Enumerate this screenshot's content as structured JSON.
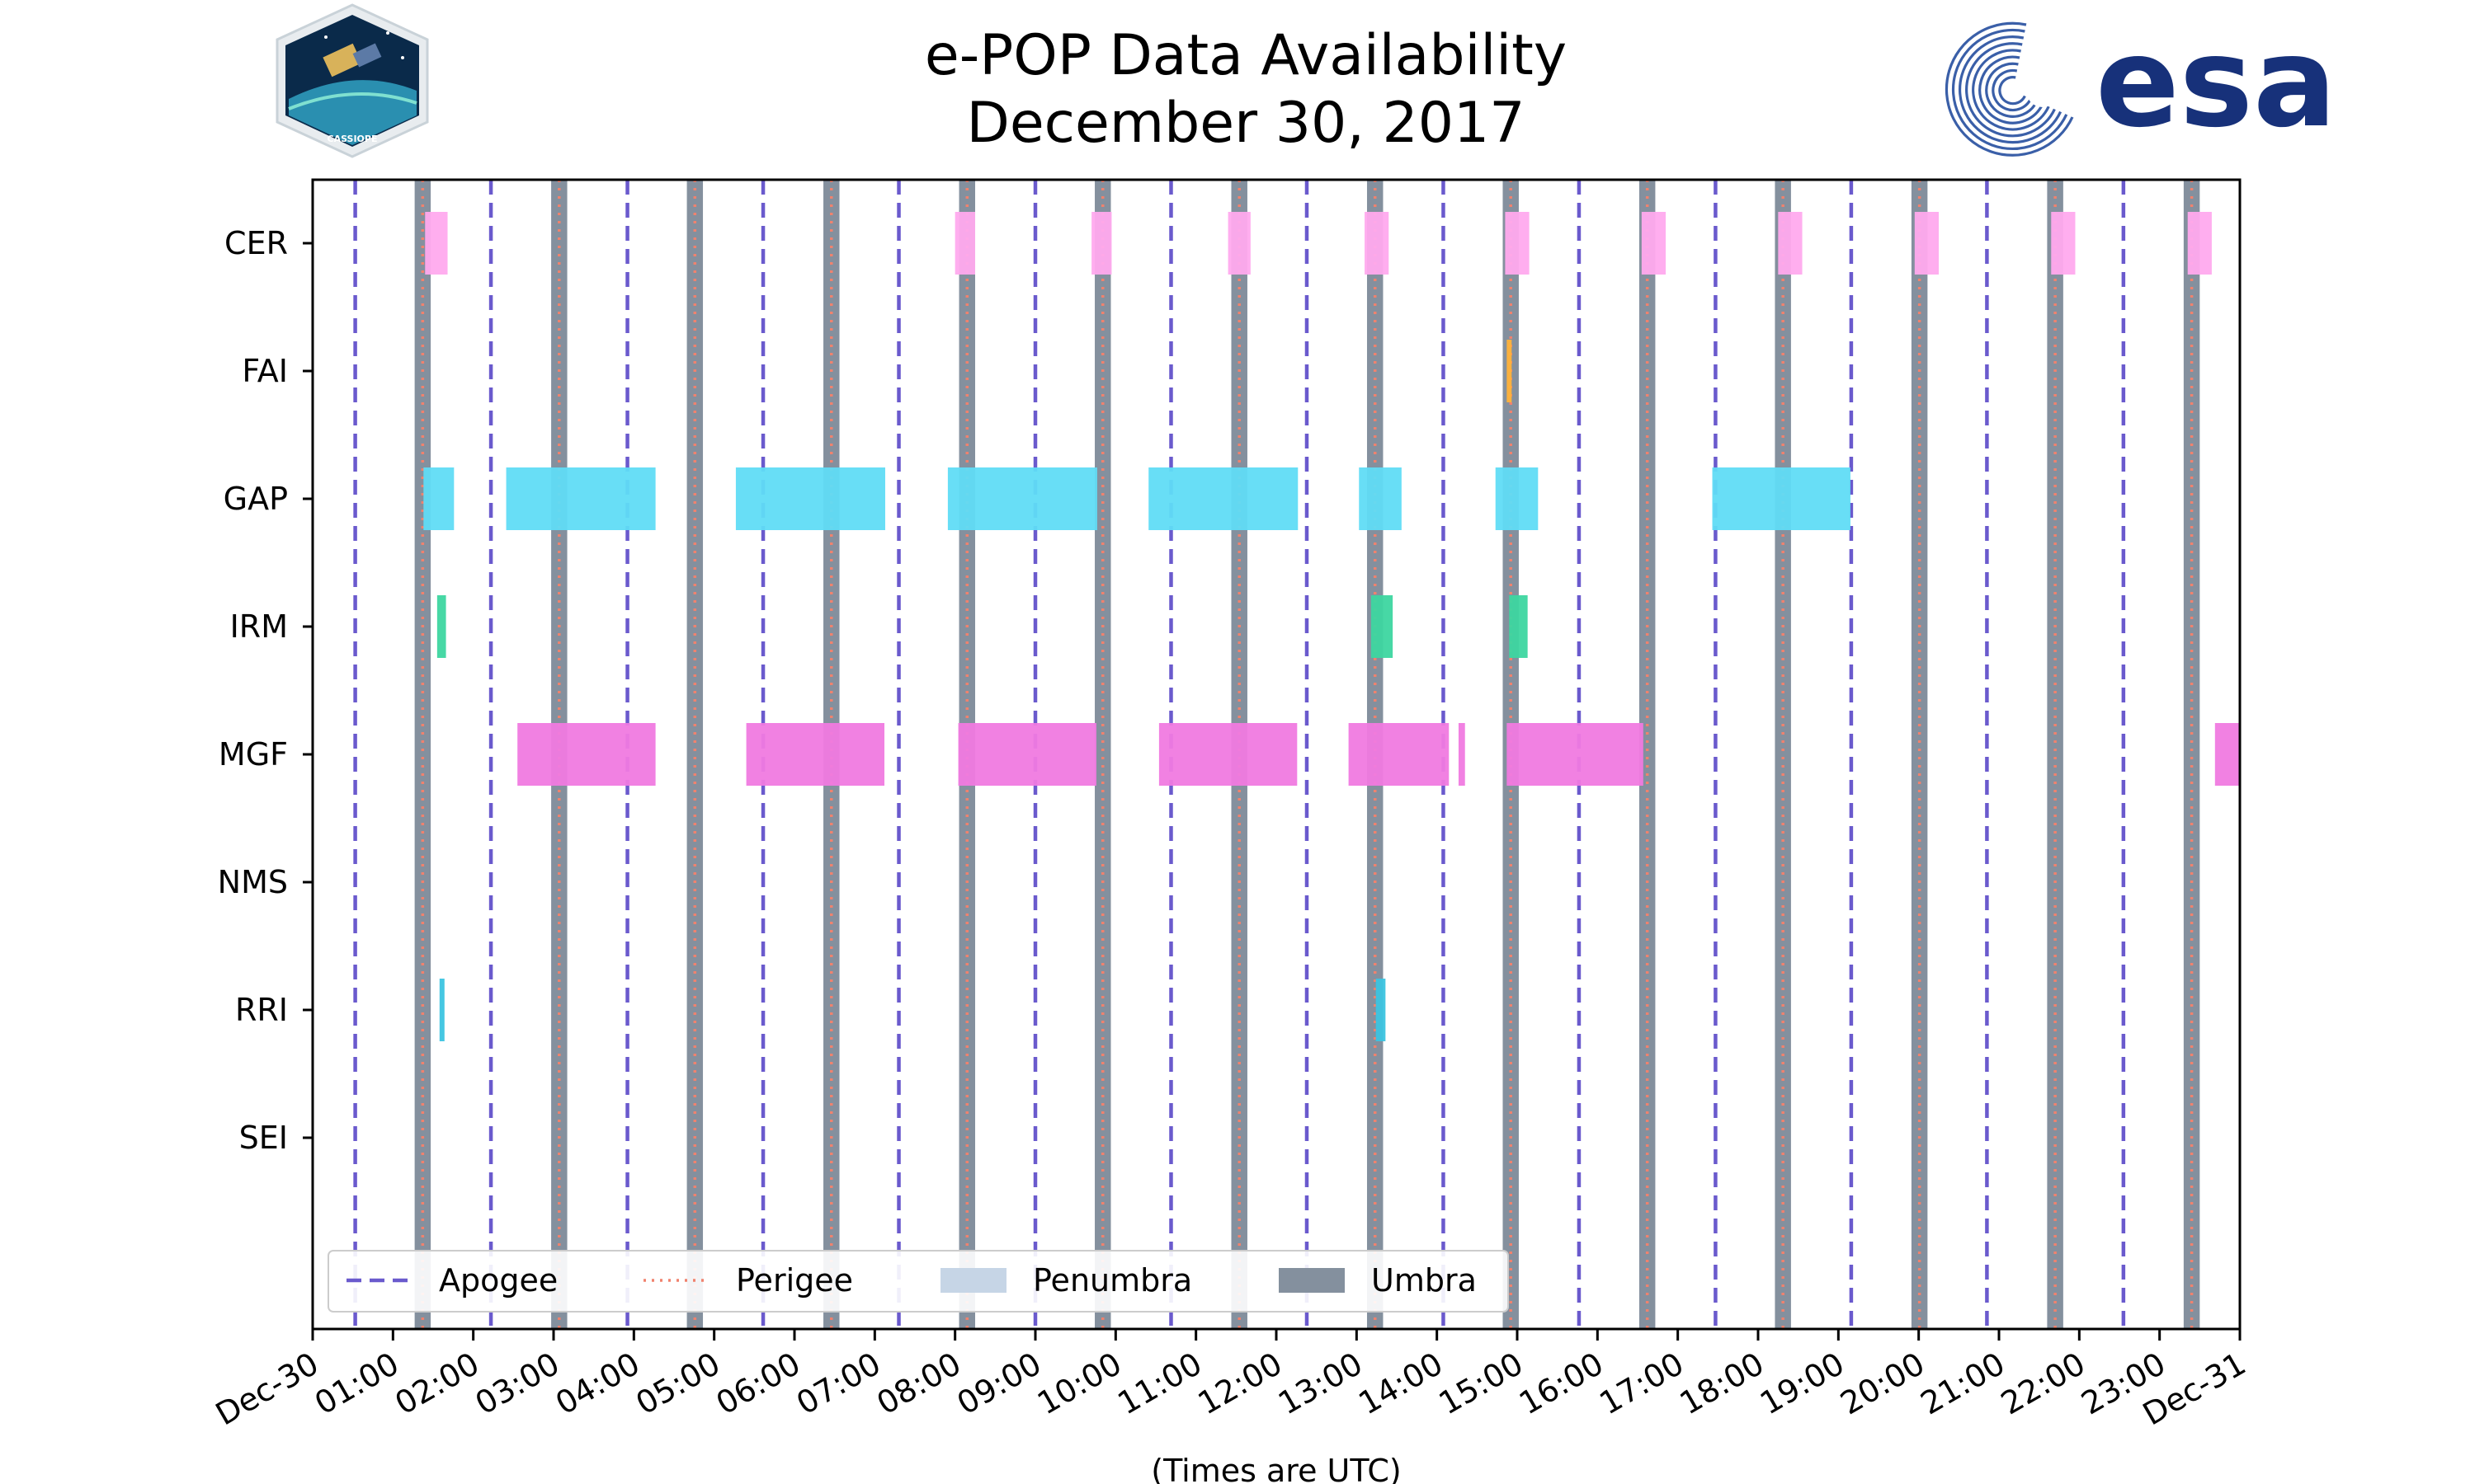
{
  "chart_data": {
    "type": "timeline",
    "title": [
      "e-POP Data Availability",
      "December 30, 2017"
    ],
    "xlabel": "(Times are UTC)",
    "xlim_hours": [
      0,
      24
    ],
    "x_tick_labels": [
      "Dec-30",
      "01:00",
      "02:00",
      "03:00",
      "04:00",
      "05:00",
      "06:00",
      "07:00",
      "08:00",
      "09:00",
      "10:00",
      "11:00",
      "12:00",
      "13:00",
      "14:00",
      "15:00",
      "16:00",
      "17:00",
      "18:00",
      "19:00",
      "20:00",
      "21:00",
      "22:00",
      "23:00",
      "Dec-31"
    ],
    "instruments": [
      "CER",
      "FAI",
      "GAP",
      "IRM",
      "MGF",
      "NMS",
      "RRI",
      "SEI"
    ],
    "colors": {
      "CER": "#ffaaee",
      "FAI": "#ffb33a",
      "GAP": "#60dcf5",
      "IRM": "#3dd6a0",
      "MGF": "#f07ae0",
      "RRI": "#3cc4e0",
      "apogee": "#6a5acd",
      "perigee": "#f0826e",
      "penumbra": "#c6d5e6",
      "umbra": "#84909e"
    },
    "apogee_hours": [
      0.53,
      2.22,
      3.92,
      5.61,
      7.3,
      9.0,
      10.69,
      12.38,
      14.08,
      15.77,
      17.47,
      19.16,
      20.85,
      22.55
    ],
    "perigee_hours": [
      1.37,
      3.07,
      4.76,
      6.46,
      8.15,
      9.84,
      11.54,
      13.23,
      14.92,
      16.62,
      18.31,
      20.01,
      21.7,
      23.4
    ],
    "umbra_intervals": [
      [
        1.27,
        1.47
      ],
      [
        2.97,
        3.17
      ],
      [
        4.66,
        4.86
      ],
      [
        6.36,
        6.56
      ],
      [
        8.05,
        8.25
      ],
      [
        9.74,
        9.94
      ],
      [
        11.44,
        11.64
      ],
      [
        13.13,
        13.33
      ],
      [
        14.82,
        15.02
      ],
      [
        16.52,
        16.72
      ],
      [
        18.21,
        18.41
      ],
      [
        19.91,
        20.11
      ],
      [
        21.6,
        21.8
      ],
      [
        23.3,
        23.5
      ]
    ],
    "intervals": {
      "CER": [
        [
          1.4,
          1.68
        ],
        [
          8.0,
          8.25
        ],
        [
          9.7,
          9.95
        ],
        [
          11.4,
          11.68
        ],
        [
          13.1,
          13.4
        ],
        [
          14.85,
          15.15
        ],
        [
          16.55,
          16.85
        ],
        [
          18.25,
          18.55
        ],
        [
          19.95,
          20.25
        ],
        [
          21.65,
          21.95
        ],
        [
          23.35,
          23.65
        ]
      ],
      "FAI": [
        [
          14.87,
          14.93
        ]
      ],
      "GAP": [
        [
          1.38,
          1.76
        ],
        [
          2.41,
          4.27
        ],
        [
          5.27,
          7.13
        ],
        [
          7.91,
          9.77
        ],
        [
          10.41,
          12.27
        ],
        [
          13.03,
          13.56
        ],
        [
          14.73,
          15.26
        ],
        [
          17.43,
          19.15
        ]
      ],
      "IRM": [
        [
          1.55,
          1.66
        ],
        [
          13.18,
          13.45
        ],
        [
          14.9,
          15.13
        ]
      ],
      "MGF": [
        [
          2.55,
          4.27
        ],
        [
          5.4,
          7.12
        ],
        [
          8.04,
          9.76
        ],
        [
          10.54,
          12.26
        ],
        [
          12.9,
          14.15
        ],
        [
          14.27,
          14.35
        ],
        [
          14.87,
          16.57
        ],
        [
          23.69,
          24.0
        ]
      ],
      "NMS": [],
      "RRI": [
        [
          1.58,
          1.64
        ],
        [
          13.24,
          13.36
        ]
      ],
      "SEI": []
    },
    "legend": [
      {
        "label": "Apogee",
        "kind": "apogee"
      },
      {
        "label": "Perigee",
        "kind": "perigee"
      },
      {
        "label": "Penumbra",
        "kind": "penumbra"
      },
      {
        "label": "Umbra",
        "kind": "umbra"
      }
    ],
    "legend_position": "lower-left"
  },
  "logos": {
    "left_badge_text": "CASSIOPE",
    "right_logo_text": "esa"
  }
}
